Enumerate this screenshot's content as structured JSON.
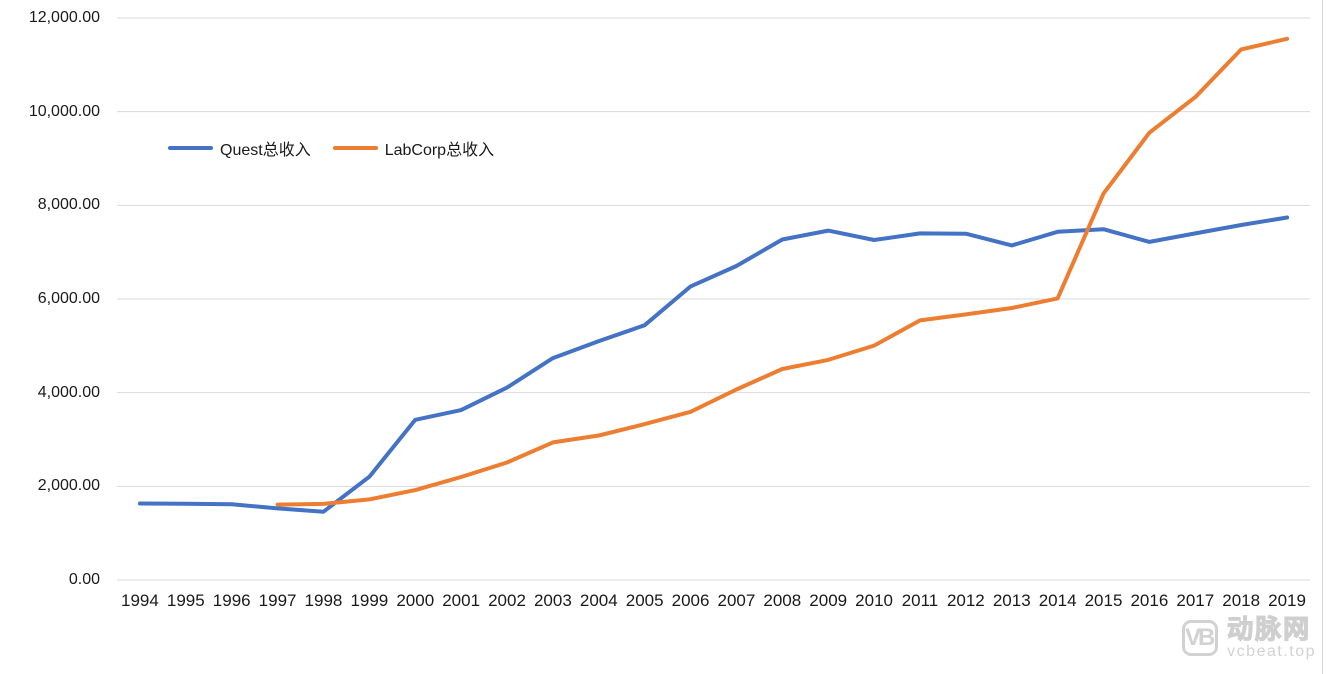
{
  "chart_data": {
    "type": "line",
    "title": "",
    "categories": [
      "1994",
      "1995",
      "1996",
      "1997",
      "1998",
      "1999",
      "2000",
      "2001",
      "2002",
      "2003",
      "2004",
      "2005",
      "2006",
      "2007",
      "2008",
      "2009",
      "2010",
      "2011",
      "2012",
      "2013",
      "2014",
      "2015",
      "2016",
      "2017",
      "2018",
      "2019"
    ],
    "series": [
      {
        "name": "Quest总收入",
        "color": "#4472C4",
        "values": [
          1634,
          1629,
          1616,
          1529,
          1459,
          2205,
          3421,
          3628,
          4108,
          4738,
          5100,
          5440,
          6270,
          6705,
          7270,
          7460,
          7260,
          7400,
          7395,
          7145,
          7435,
          7490,
          7220,
          7400,
          7580,
          7740
        ]
      },
      {
        "name": "LabCorp总收入",
        "color": "#ED7D31",
        "values": [
          null,
          null,
          null,
          1610,
          1625,
          1720,
          1919,
          2200,
          2508,
          2939,
          3085,
          3328,
          3591,
          4068,
          4505,
          4700,
          5004,
          5542,
          5671,
          5808,
          6012,
          8250,
          9550,
          10310,
          11330,
          11555
        ]
      }
    ],
    "ylim": [
      0,
      12000
    ],
    "y_ticks": [
      0,
      2000,
      4000,
      6000,
      8000,
      10000,
      12000
    ],
    "y_tick_labels": [
      "0.00",
      "2,000.00",
      "4,000.00",
      "6,000.00",
      "8,000.00",
      "10,000.00",
      "12,000.00"
    ],
    "xlabel": "",
    "ylabel": "",
    "grid": true,
    "legend_position": "inside-top-left"
  },
  "watermark": {
    "logo": "VB",
    "brand": "动脉网",
    "site": "vcbeat.top"
  },
  "colors": {
    "background": "#FFFFFF",
    "gridline": "#D9D9D9",
    "axis_text": "#1A1A1A",
    "right_border": "#D8D8D8"
  }
}
